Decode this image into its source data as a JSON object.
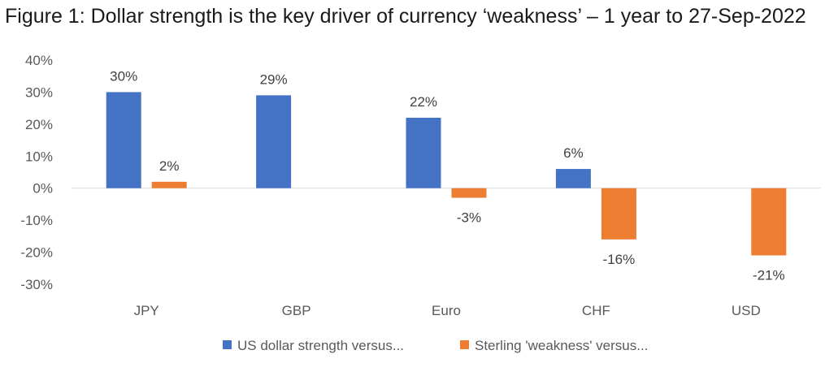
{
  "title": "Figure 1: Dollar strength is the key driver of currency ‘weakness’ – 1 year to 27-Sep-2022",
  "chart_data": {
    "type": "bar",
    "categories": [
      "JPY",
      "GBP",
      "Euro",
      "CHF",
      "USD"
    ],
    "series": [
      {
        "name": "US dollar strength versus...",
        "color": "#4472C4",
        "values": [
          30,
          29,
          22,
          6,
          null
        ],
        "labels": [
          "30%",
          "29%",
          "22%",
          "6%",
          ""
        ]
      },
      {
        "name": "Sterling 'weakness' versus...",
        "color": "#ED7D31",
        "values": [
          2,
          null,
          -3,
          -16,
          -21
        ],
        "labels": [
          "2%",
          "",
          "-3%",
          "-16%",
          "-21%"
        ]
      }
    ],
    "ylim": [
      -30,
      40
    ],
    "yticks": [
      40,
      30,
      20,
      10,
      0,
      -10,
      -20,
      -30
    ],
    "ytick_labels": [
      "40%",
      "30%",
      "20%",
      "10%",
      "0%",
      "-10%",
      "-20%",
      "-30%"
    ],
    "grid": false,
    "legend": "bottom"
  }
}
